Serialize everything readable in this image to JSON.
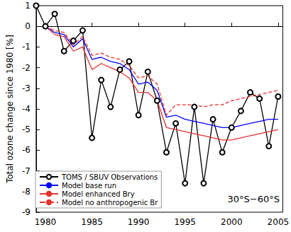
{
  "chart_data": {
    "type": "line",
    "y_label": "Total ozone change since 1980 [%]",
    "annotation": "30°S−60°S",
    "x": [
      1979,
      1980,
      1981,
      1982,
      1983,
      1984,
      1985,
      1986,
      1987,
      1988,
      1989,
      1990,
      1991,
      1992,
      1993,
      1994,
      1995,
      1996,
      1997,
      1998,
      1999,
      2000,
      2001,
      2002,
      2003,
      2004,
      2005
    ],
    "xlim": [
      1979,
      2005.5
    ],
    "xticks": [
      1980,
      1985,
      1990,
      1995,
      2000,
      2005
    ],
    "ylim": [
      -9,
      1
    ],
    "yticks": [
      -9,
      -8,
      -7,
      -6,
      -5,
      -4,
      -3,
      -2,
      -1,
      0,
      1
    ],
    "grid": false,
    "legend": "lower left",
    "series": [
      {
        "name": "TOMS / SBUV Observations",
        "color": "#000000",
        "marker": "circle",
        "line_style": "solid",
        "values": [
          1.0,
          0.0,
          0.6,
          -1.2,
          -0.7,
          -0.2,
          -5.4,
          -2.6,
          -3.9,
          -2.1,
          -1.7,
          -4.3,
          -2.2,
          -3.6,
          -6.1,
          -4.7,
          -7.6,
          -3.9,
          -7.6,
          -4.5,
          -6.1,
          -4.9,
          -4.1,
          -3.2,
          -3.5,
          -5.8,
          -3.4
        ]
      },
      {
        "name": "Model base run",
        "color": "#0000ff",
        "marker": "none",
        "line_style": "solid",
        "values": [
          null,
          0.0,
          -0.3,
          -0.4,
          -1.0,
          -0.6,
          -1.6,
          -1.5,
          -1.7,
          -1.8,
          -2.1,
          -2.8,
          -2.7,
          -3.1,
          -4.4,
          -4.3,
          -4.5,
          -4.6,
          -4.7,
          -4.8,
          -4.9,
          -4.9,
          -4.8,
          -4.7,
          -4.6,
          -4.5,
          -4.5
        ]
      },
      {
        "name": "Model enhanced Bry",
        "color": "#e8302c",
        "marker": "none",
        "line_style": "solid",
        "values": [
          null,
          0.0,
          -0.4,
          -0.5,
          -1.2,
          -1.0,
          -2.1,
          -1.8,
          -2.0,
          -2.2,
          -2.5,
          -3.2,
          -3.2,
          -3.6,
          -4.9,
          -5.0,
          -5.1,
          -5.2,
          -5.3,
          -5.4,
          -5.5,
          -5.5,
          -5.4,
          -5.3,
          -5.2,
          -5.1,
          -5.0
        ]
      },
      {
        "name": "Model no anthropogenic Br",
        "color": "#e8302c",
        "marker": "none",
        "line_style": "dashed",
        "values": [
          null,
          0.0,
          -0.2,
          -0.3,
          -0.9,
          -0.5,
          -1.4,
          -1.3,
          -1.5,
          -1.6,
          -1.9,
          -2.5,
          -2.4,
          -2.8,
          -4.3,
          -3.8,
          -3.8,
          -3.8,
          -3.9,
          -3.8,
          -3.8,
          -3.6,
          -3.5,
          -3.4,
          -3.3,
          -3.2,
          -3.1
        ]
      }
    ]
  }
}
